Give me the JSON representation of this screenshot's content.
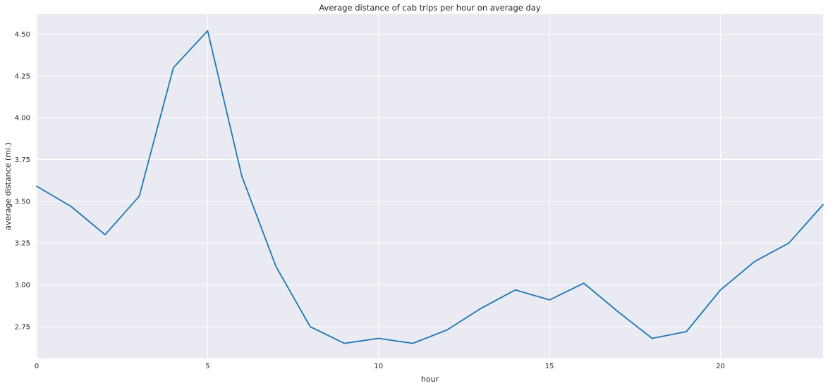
{
  "chart_data": {
    "type": "line",
    "title": "Average distance of cab trips per hour on average day",
    "xlabel": "hour",
    "ylabel": "average distance (mi.)",
    "xlim": [
      0,
      23
    ],
    "ylim": [
      2.56,
      4.62
    ],
    "xticks": [
      0,
      5,
      10,
      15,
      20
    ],
    "yticks": [
      2.75,
      3.0,
      3.25,
      3.5,
      3.75,
      4.0,
      4.25,
      4.5
    ],
    "ytick_labels": [
      "2.75",
      "3.00",
      "3.25",
      "3.50",
      "3.75",
      "4.00",
      "4.25",
      "4.50"
    ],
    "grid": true,
    "background_color": "#eaeaf2",
    "grid_color": "#ffffff",
    "series": [
      {
        "color": "#1f77b4",
        "x": [
          0,
          1,
          2,
          3,
          4,
          5,
          6,
          7,
          8,
          9,
          10,
          11,
          12,
          13,
          14,
          15,
          16,
          17,
          18,
          19,
          20,
          21,
          22,
          23
        ],
        "values": [
          3.59,
          3.47,
          3.3,
          3.53,
          4.3,
          4.52,
          3.65,
          3.11,
          2.75,
          2.65,
          2.68,
          2.65,
          2.73,
          2.86,
          2.97,
          2.91,
          3.01,
          2.84,
          2.68,
          2.72,
          2.97,
          3.14,
          3.25,
          3.48
        ]
      }
    ]
  }
}
